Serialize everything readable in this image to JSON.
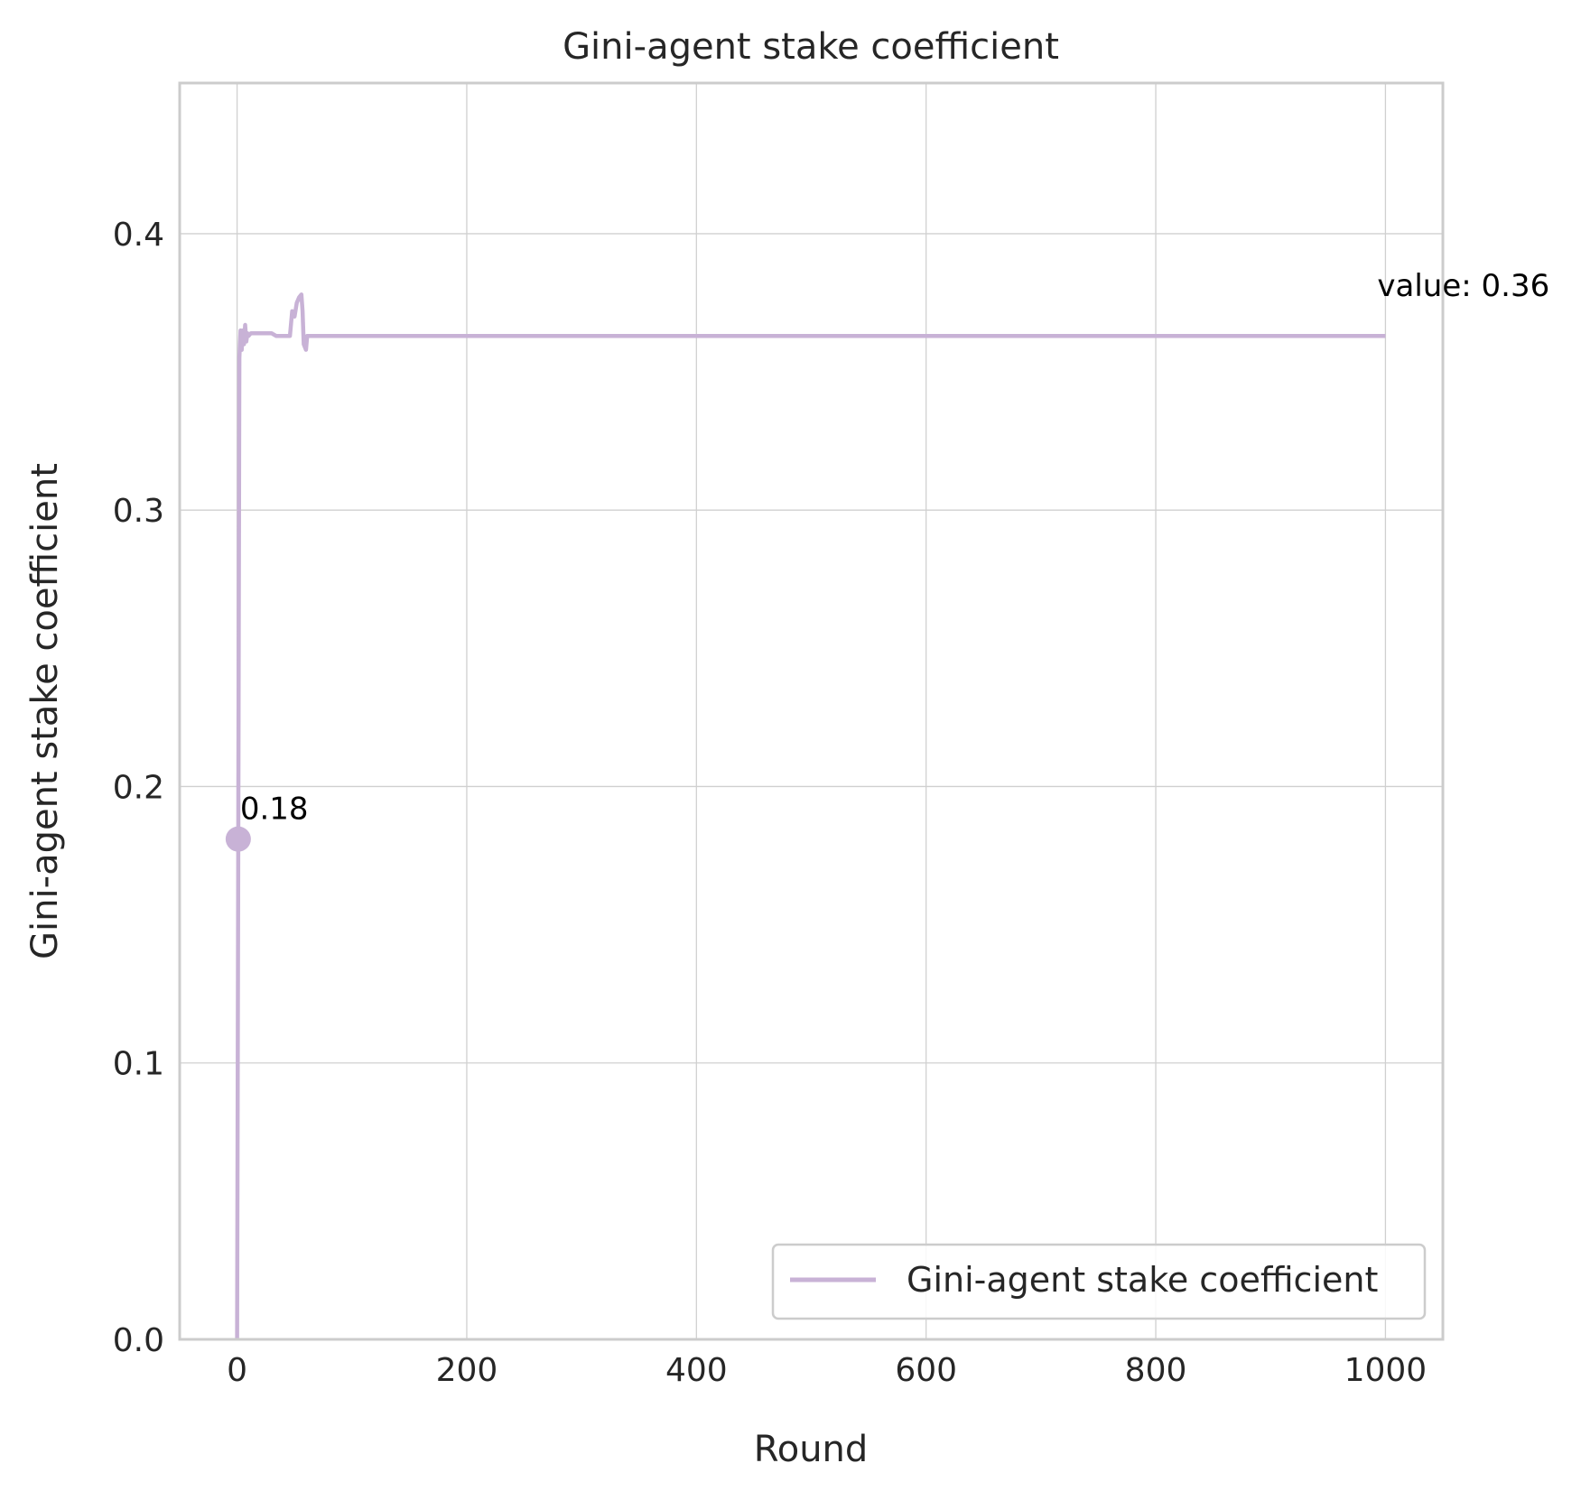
{
  "chart_data": {
    "type": "line",
    "title": "Gini-agent stake coefficient",
    "xlabel": "Round",
    "ylabel": "Gini-agent stake coefficient",
    "xlim": [
      -50,
      1050
    ],
    "ylim": [
      0,
      0.4545
    ],
    "xticks": [
      0,
      200,
      400,
      600,
      800,
      1000
    ],
    "xtick_labels": [
      "0",
      "200",
      "400",
      "600",
      "800",
      "1000"
    ],
    "yticks": [
      0.0,
      0.1,
      0.2,
      0.3,
      0.4
    ],
    "ytick_labels": [
      "0.0",
      "0.1",
      "0.2",
      "0.3",
      "0.4"
    ],
    "grid": true,
    "legend_position": "lower-right",
    "series": [
      {
        "name": "Gini-agent stake coefficient",
        "color": "#c8b2d6",
        "x": [
          0,
          1,
          2,
          3,
          4,
          5,
          6,
          7,
          8,
          9,
          10,
          12,
          15,
          20,
          30,
          34,
          40,
          46,
          48,
          50,
          52,
          54,
          56,
          57,
          58,
          60,
          61,
          62,
          64,
          70,
          100,
          200,
          400,
          600,
          800,
          1000
        ],
        "y": [
          0.0,
          0.181,
          0.355,
          0.365,
          0.358,
          0.365,
          0.36,
          0.367,
          0.361,
          0.364,
          0.363,
          0.364,
          0.364,
          0.364,
          0.364,
          0.363,
          0.363,
          0.363,
          0.372,
          0.37,
          0.375,
          0.377,
          0.378,
          0.372,
          0.36,
          0.358,
          0.363,
          0.363,
          0.363,
          0.363,
          0.363,
          0.363,
          0.363,
          0.363,
          0.363,
          0.363
        ]
      }
    ],
    "highlight_point": {
      "x": 1,
      "y": 0.181,
      "label": "0.18"
    },
    "end_annotation": {
      "x": 1000,
      "y": 0.363,
      "label": "value: 0.36"
    }
  }
}
